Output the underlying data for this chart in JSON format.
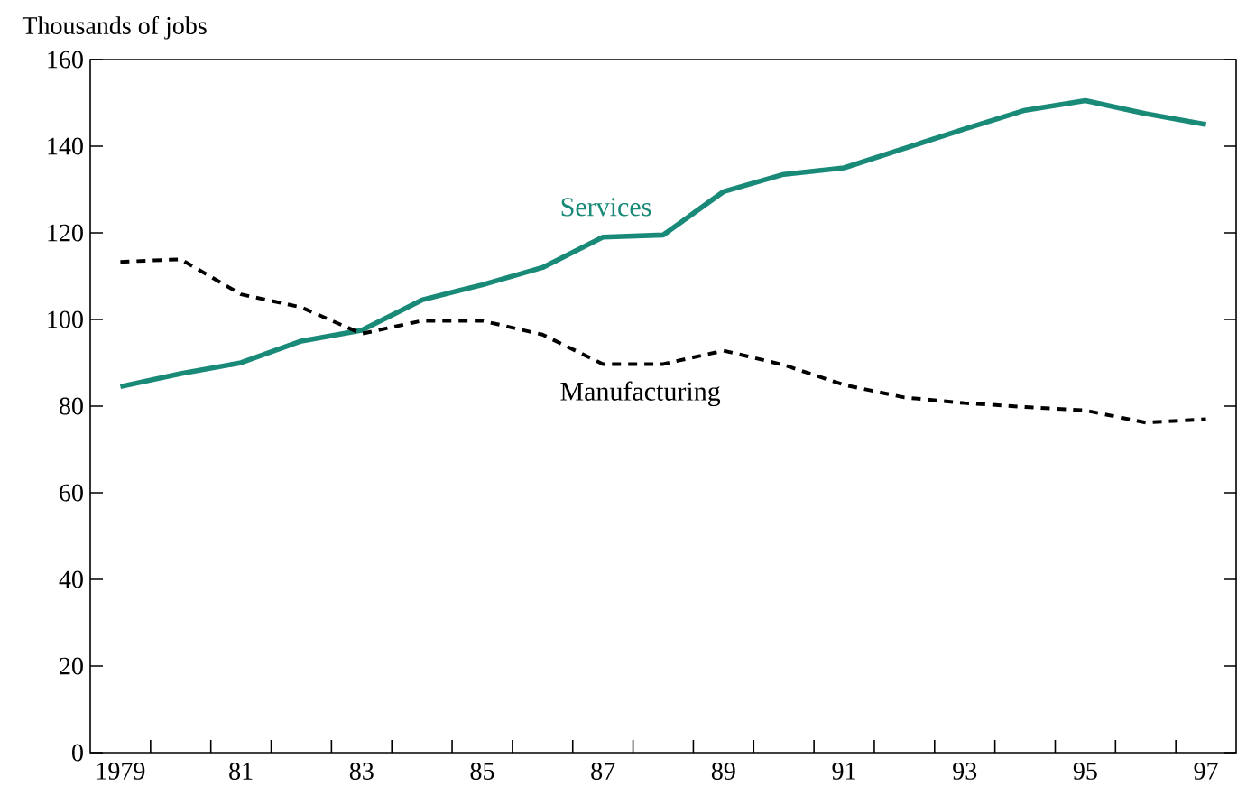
{
  "chart_data": {
    "type": "line",
    "ylabel": "Thousands of jobs",
    "x": [
      1979,
      1980,
      1981,
      1982,
      1983,
      1984,
      1985,
      1986,
      1987,
      1988,
      1989,
      1990,
      1991,
      1992,
      1993,
      1994,
      1995,
      1996,
      1997
    ],
    "series": [
      {
        "name": "Services",
        "color": "#1a8a78",
        "line_style": "solid",
        "values": [
          84.5,
          87.5,
          90,
          95,
          97.5,
          104.5,
          108,
          112,
          119,
          119.5,
          129.5,
          133.5,
          135,
          139.5,
          144,
          148.3,
          150.5,
          147.5,
          145
        ]
      },
      {
        "name": "Manufacturing",
        "color": "#000000",
        "line_style": "dashed",
        "values": [
          113.3,
          113.9,
          105.8,
          102.8,
          96.7,
          99.7,
          99.7,
          96.5,
          89.7,
          89.7,
          92.8,
          89.5,
          84.9,
          82,
          80.7,
          79.8,
          79,
          76.2,
          77
        ]
      }
    ],
    "xlim": [
      1978.5,
      1997.5
    ],
    "xticks": [
      {
        "value": 1979,
        "label": "1979"
      },
      {
        "value": 1979.5,
        "label": null
      },
      {
        "value": 1980.5,
        "label": null
      },
      {
        "value": 1981,
        "label": "81"
      },
      {
        "value": 1981.5,
        "label": null
      },
      {
        "value": 1982.5,
        "label": null
      },
      {
        "value": 1983,
        "label": "83"
      },
      {
        "value": 1983.5,
        "label": null
      },
      {
        "value": 1984.5,
        "label": null
      },
      {
        "value": 1985,
        "label": "85"
      },
      {
        "value": 1985.5,
        "label": null
      },
      {
        "value": 1986.5,
        "label": null
      },
      {
        "value": 1987,
        "label": "87"
      },
      {
        "value": 1987.5,
        "label": null
      },
      {
        "value": 1988.5,
        "label": null
      },
      {
        "value": 1989,
        "label": "89"
      },
      {
        "value": 1989.5,
        "label": null
      },
      {
        "value": 1990.5,
        "label": null
      },
      {
        "value": 1991,
        "label": "91"
      },
      {
        "value": 1991.5,
        "label": null
      },
      {
        "value": 1992.5,
        "label": null
      },
      {
        "value": 1993,
        "label": "93"
      },
      {
        "value": 1993.5,
        "label": null
      },
      {
        "value": 1994.5,
        "label": null
      },
      {
        "value": 1995,
        "label": "95"
      },
      {
        "value": 1995.5,
        "label": null
      },
      {
        "value": 1996.5,
        "label": null
      },
      {
        "value": 1997,
        "label": "97"
      }
    ],
    "ylim": [
      0,
      160
    ],
    "yticks": [
      0,
      20,
      40,
      60,
      80,
      100,
      120,
      140,
      160
    ],
    "grid": false,
    "legend": false,
    "marker": "none"
  }
}
